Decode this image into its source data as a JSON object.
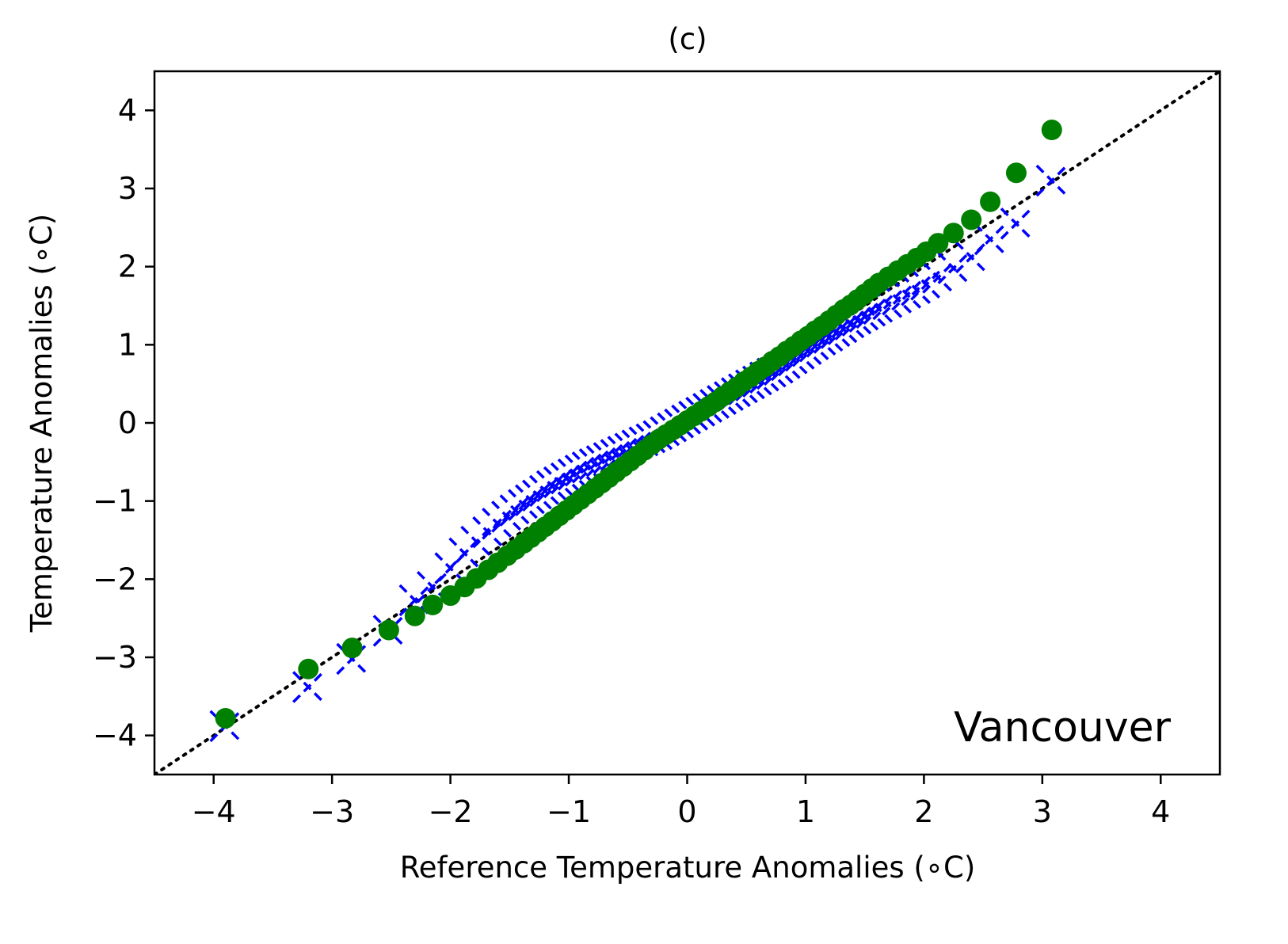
{
  "chart_data": {
    "type": "scatter",
    "title": "(c)",
    "xlabel": "Reference Temperature Anomalies (∘C)",
    "ylabel": "Temperature Anomalies (∘C)",
    "xlim": [
      -4.5,
      4.5
    ],
    "ylim": [
      -4.5,
      4.5
    ],
    "xticks": [
      -4,
      -3,
      -2,
      -1,
      0,
      1,
      2,
      3,
      4
    ],
    "yticks": [
      -4,
      -3,
      -2,
      -1,
      0,
      1,
      2,
      3,
      4
    ],
    "xtick_labels": [
      "−4",
      "−3",
      "−2",
      "−1",
      "0",
      "1",
      "2",
      "3",
      "4"
    ],
    "ytick_labels": [
      "−4",
      "−3",
      "−2",
      "−1",
      "0",
      "1",
      "2",
      "3",
      "4"
    ],
    "grid": false,
    "annotation": "Vancouver",
    "colors": {
      "green": "#008000",
      "blue": "#0000ff",
      "reference": "#000000"
    },
    "reference_line": {
      "name": "1:1 line",
      "style": "dotted",
      "x": [
        -4.5,
        4.5
      ],
      "y": [
        -4.5,
        4.5
      ]
    },
    "series": [
      {
        "name": "green circles",
        "marker": "circle",
        "color": "#008000",
        "x": [
          -3.9,
          -3.2,
          -2.83,
          -2.52,
          -2.3,
          -2.15,
          -2.0,
          -1.88,
          -1.78,
          -1.68,
          -1.6,
          -1.52,
          -1.45,
          -1.38,
          -1.32,
          -1.26,
          -1.2,
          -1.14,
          -1.08,
          -1.02,
          -0.96,
          -0.9,
          -0.84,
          -0.78,
          -0.72,
          -0.66,
          -0.6,
          -0.54,
          -0.48,
          -0.42,
          -0.36,
          -0.3,
          -0.24,
          -0.18,
          -0.12,
          -0.06,
          0.0,
          0.06,
          0.12,
          0.18,
          0.24,
          0.3,
          0.36,
          0.42,
          0.48,
          0.54,
          0.6,
          0.66,
          0.72,
          0.78,
          0.84,
          0.9,
          0.96,
          1.02,
          1.08,
          1.14,
          1.2,
          1.26,
          1.32,
          1.38,
          1.44,
          1.5,
          1.56,
          1.62,
          1.7,
          1.78,
          1.86,
          1.94,
          2.02,
          2.12,
          2.25,
          2.4,
          2.56,
          2.78,
          3.08
        ],
        "y": [
          -3.78,
          -3.15,
          -2.88,
          -2.65,
          -2.47,
          -2.33,
          -2.21,
          -2.1,
          -1.99,
          -1.88,
          -1.79,
          -1.7,
          -1.62,
          -1.54,
          -1.47,
          -1.4,
          -1.33,
          -1.26,
          -1.19,
          -1.12,
          -1.05,
          -0.98,
          -0.91,
          -0.84,
          -0.77,
          -0.7,
          -0.63,
          -0.56,
          -0.49,
          -0.42,
          -0.35,
          -0.28,
          -0.21,
          -0.15,
          -0.09,
          -0.03,
          0.03,
          0.09,
          0.15,
          0.21,
          0.27,
          0.34,
          0.4,
          0.46,
          0.53,
          0.59,
          0.66,
          0.72,
          0.79,
          0.85,
          0.92,
          0.98,
          1.05,
          1.11,
          1.18,
          1.24,
          1.31,
          1.38,
          1.45,
          1.51,
          1.58,
          1.65,
          1.72,
          1.79,
          1.87,
          1.95,
          2.03,
          2.11,
          2.19,
          2.3,
          2.43,
          2.6,
          2.83,
          3.2,
          3.75
        ]
      },
      {
        "name": "blue crosses",
        "marker": "x",
        "color": "#0000ff",
        "x": [
          -3.9,
          -3.2,
          -2.83,
          -2.52,
          -2.3,
          -2.15,
          -2.0,
          -1.88,
          -1.78,
          -1.68,
          -1.6,
          -1.52,
          -1.45,
          -1.38,
          -1.32,
          -1.26,
          -1.2,
          -1.14,
          -1.08,
          -1.02,
          -0.96,
          -0.9,
          -0.84,
          -0.78,
          -0.72,
          -0.66,
          -0.6,
          -0.54,
          -0.48,
          -0.42,
          -0.36,
          -0.3,
          -0.24,
          -0.18,
          -0.12,
          -0.06,
          0.0,
          0.06,
          0.12,
          0.18,
          0.24,
          0.3,
          0.36,
          0.42,
          0.48,
          0.54,
          0.6,
          0.66,
          0.72,
          0.78,
          0.84,
          0.9,
          0.96,
          1.02,
          1.08,
          1.14,
          1.2,
          1.26,
          1.32,
          1.38,
          1.44,
          1.5,
          1.56,
          1.62,
          1.7,
          1.78,
          1.86,
          1.94,
          2.02,
          2.12,
          2.25,
          2.4,
          2.56,
          2.78,
          3.08
        ],
        "y": [
          -3.88,
          -3.38,
          -3.02,
          -2.66,
          -2.27,
          -2.1,
          -1.86,
          -1.67,
          -1.52,
          -1.4,
          -1.29,
          -1.2,
          -1.12,
          -1.05,
          -0.99,
          -0.93,
          -0.87,
          -0.81,
          -0.76,
          -0.71,
          -0.66,
          -0.61,
          -0.57,
          -0.53,
          -0.49,
          -0.45,
          -0.41,
          -0.37,
          -0.33,
          -0.29,
          -0.25,
          -0.21,
          -0.17,
          -0.12,
          -0.07,
          -0.02,
          0.03,
          0.08,
          0.13,
          0.18,
          0.23,
          0.28,
          0.33,
          0.38,
          0.43,
          0.48,
          0.53,
          0.58,
          0.63,
          0.68,
          0.74,
          0.8,
          0.86,
          0.92,
          0.98,
          1.04,
          1.09,
          1.15,
          1.2,
          1.26,
          1.31,
          1.36,
          1.41,
          1.46,
          1.52,
          1.58,
          1.64,
          1.7,
          1.77,
          1.86,
          1.98,
          2.12,
          2.35,
          2.55,
          3.1
        ]
      }
    ]
  }
}
